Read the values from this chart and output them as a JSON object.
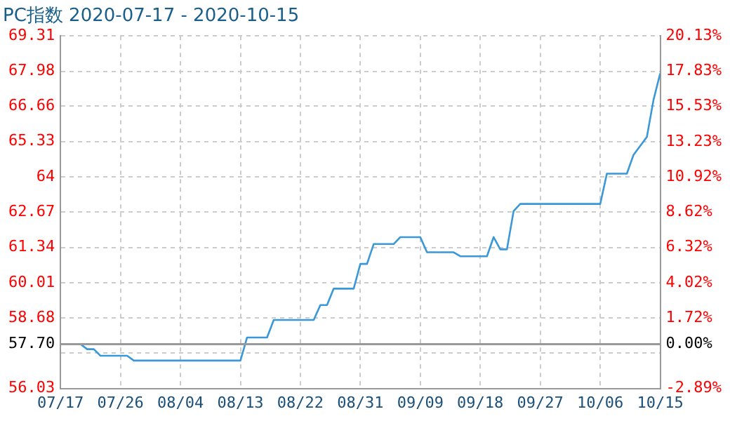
{
  "chart_data": {
    "type": "line",
    "title": "PC指数 2020-07-17 - 2020-10-15",
    "x": [
      "--07-17",
      "--07-20",
      "--07-21",
      "--07-22",
      "--07-23",
      "--07-27",
      "--07-28",
      "--08-13",
      "--08-14",
      "--08-17",
      "--08-18",
      "--08-24",
      "--08-25",
      "--08-26",
      "--08-27",
      "--08-30",
      "--08-31",
      "--09-01",
      "--09-02",
      "--09-05",
      "--09-06",
      "--09-09",
      "--09-10",
      "--09-14",
      "--09-15",
      "--09-19",
      "--09-20",
      "--09-21",
      "--09-22",
      "--09-23",
      "--09-24",
      "--10-06",
      "--10-07",
      "--10-10",
      "--10-11",
      "--10-13",
      "--10-14",
      "--10-15"
    ],
    "series": [
      {
        "color": "#3a98d8",
        "values": [
          57.7,
          57.7,
          57.51,
          57.51,
          57.26,
          57.26,
          57.08,
          57.08,
          57.95,
          57.95,
          58.61,
          58.61,
          59.17,
          59.17,
          59.79,
          59.79,
          60.72,
          60.72,
          61.47,
          61.47,
          61.73,
          61.73,
          61.16,
          61.16,
          61.01,
          61.01,
          61.73,
          61.27,
          61.27,
          62.71,
          62.98,
          62.98,
          64.12,
          64.12,
          64.83,
          65.5,
          66.9,
          67.9
        ]
      }
    ],
    "xlim": [
      "--07-17",
      "--10-15"
    ],
    "xticks": [
      {
        "value": "--07-17",
        "label": "07/17"
      },
      {
        "value": "--07-26",
        "label": "07/26"
      },
      {
        "value": "--08-04",
        "label": "08/04"
      },
      {
        "value": "--08-13",
        "label": "08/13"
      },
      {
        "value": "--08-22",
        "label": "08/22"
      },
      {
        "value": "--08-31",
        "label": "08/31"
      },
      {
        "value": "--09-09",
        "label": "09/09"
      },
      {
        "value": "--09-18",
        "label": "09/18"
      },
      {
        "value": "--09-27",
        "label": "09/27"
      },
      {
        "value": "--10-06",
        "label": "10/06"
      },
      {
        "value": "--10-15",
        "label": "10/15"
      }
    ],
    "ylim": [
      56.03,
      69.31
    ],
    "yticks": [
      56.03,
      {
        "value": 57.36,
        "label": null
      },
      58.68,
      60.01,
      61.34,
      62.67,
      64,
      65.33,
      66.66,
      67.98,
      69.31
    ],
    "y2lim": [
      -2.89,
      20.13
    ],
    "y2ticks": [
      {
        "value": -2.89,
        "label": "-2.89%"
      },
      {
        "value": -0.58,
        "label": null
      },
      {
        "value": 0,
        "label": "0.00%"
      },
      {
        "value": 1.72,
        "label": "1.72%"
      },
      {
        "value": 4.02,
        "label": "4.02%"
      },
      {
        "value": 6.32,
        "label": "6.32%"
      },
      {
        "value": 8.62,
        "label": "8.62%"
      },
      {
        "value": 10.92,
        "label": "10.92%"
      },
      {
        "value": 13.23,
        "label": "13.23%"
      },
      {
        "value": 15.53,
        "label": "15.53%"
      },
      {
        "value": 17.83,
        "label": "17.83%"
      },
      {
        "value": 20.13,
        "label": "20.13%"
      }
    ],
    "ref_lines": [
      {
        "axis": "y",
        "value": 57.7,
        "label": "57.70",
        "color": "#999999"
      }
    ],
    "grid": true,
    "legend": false,
    "marker": "none",
    "line_style": "solid"
  }
}
